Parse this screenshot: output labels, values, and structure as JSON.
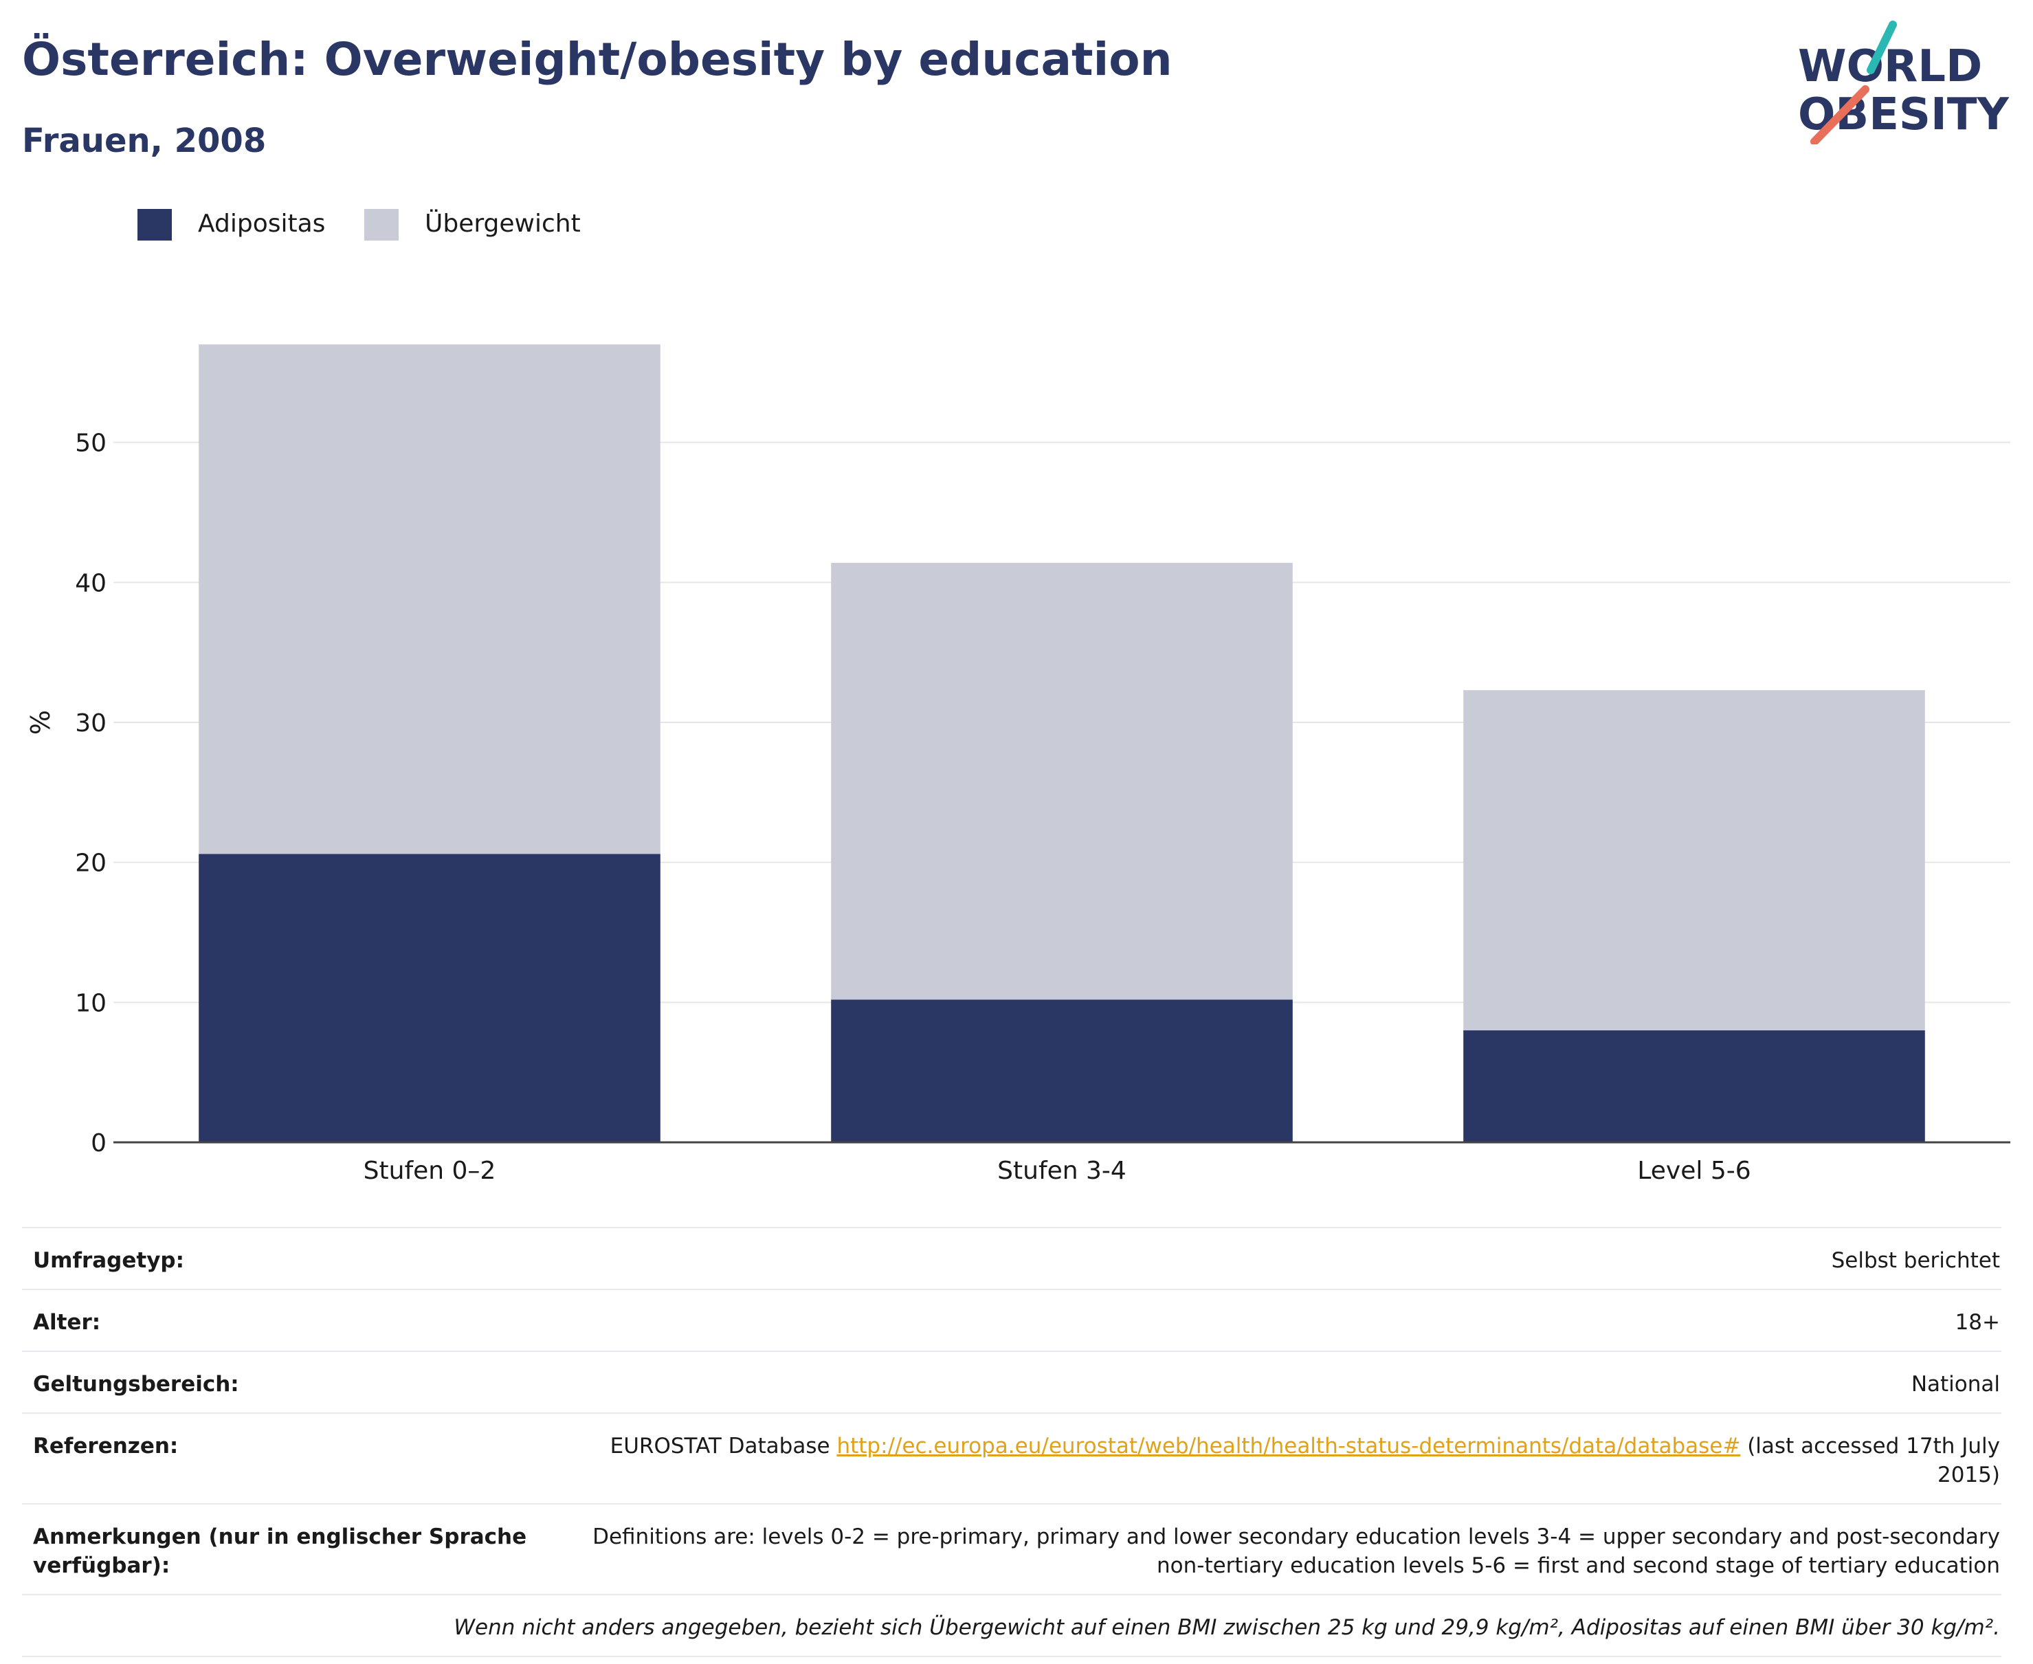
{
  "header": {
    "title": "Österreich: Overweight/obesity by education",
    "subtitle": "Frauen, 2008"
  },
  "logo": {
    "line1": "WORLD",
    "line2": "OBESITY",
    "accent_teal": "#2bb7b3",
    "accent_coral": "#e8705a"
  },
  "colors": {
    "adipositas": "#2a3664",
    "uebergewicht": "#c9ccd7",
    "title": "#2a3664",
    "link": "#e0a21a",
    "grid": "#e6e6e6"
  },
  "legend": {
    "items": [
      {
        "label": "Adipositas"
      },
      {
        "label": "Übergewicht"
      }
    ]
  },
  "chart_data": {
    "type": "bar",
    "stacked": true,
    "categories": [
      "Stufen 0–2",
      "Stufen 3-4",
      "Level 5-6"
    ],
    "series": [
      {
        "name": "Adipositas",
        "values": [
          20.6,
          10.2,
          8.0
        ]
      },
      {
        "name": "Übergewicht",
        "values": [
          36.4,
          31.2,
          24.3
        ]
      }
    ],
    "totals": [
      57.0,
      41.4,
      32.3
    ],
    "ylabel": "%",
    "xlabel": "",
    "ylim": [
      0,
      60
    ],
    "yticks": [
      0,
      10,
      20,
      30,
      40,
      50
    ],
    "grid": true,
    "legend_position": "top-left"
  },
  "info": {
    "rows": [
      {
        "label": "Umfragetyp:",
        "value": "Selbst berichtet"
      },
      {
        "label": "Alter:",
        "value": "18+"
      },
      {
        "label": "Geltungsbereich:",
        "value": "National"
      },
      {
        "label": "Referenzen:",
        "value_prefix": "EUROSTAT Database ",
        "link": "http://ec.europa.eu/eurostat/web/health/health-status-determinants/data/database#",
        "value_suffix": " (last accessed 17th July 2015)"
      },
      {
        "label": "Anmerkungen (nur in englischer Sprache verfügbar):",
        "value": "Definitions are: levels 0-2 = pre-primary, primary and lower secondary education levels 3-4 = upper secondary and post-secondary non-tertiary education levels 5-6 = first and second stage of tertiary education"
      }
    ],
    "footnote": "Wenn nicht anders angegeben, bezieht sich Übergewicht auf einen BMI zwischen 25 kg und 29,9 kg/m², Adipositas auf einen BMI über 30 kg/m²."
  }
}
